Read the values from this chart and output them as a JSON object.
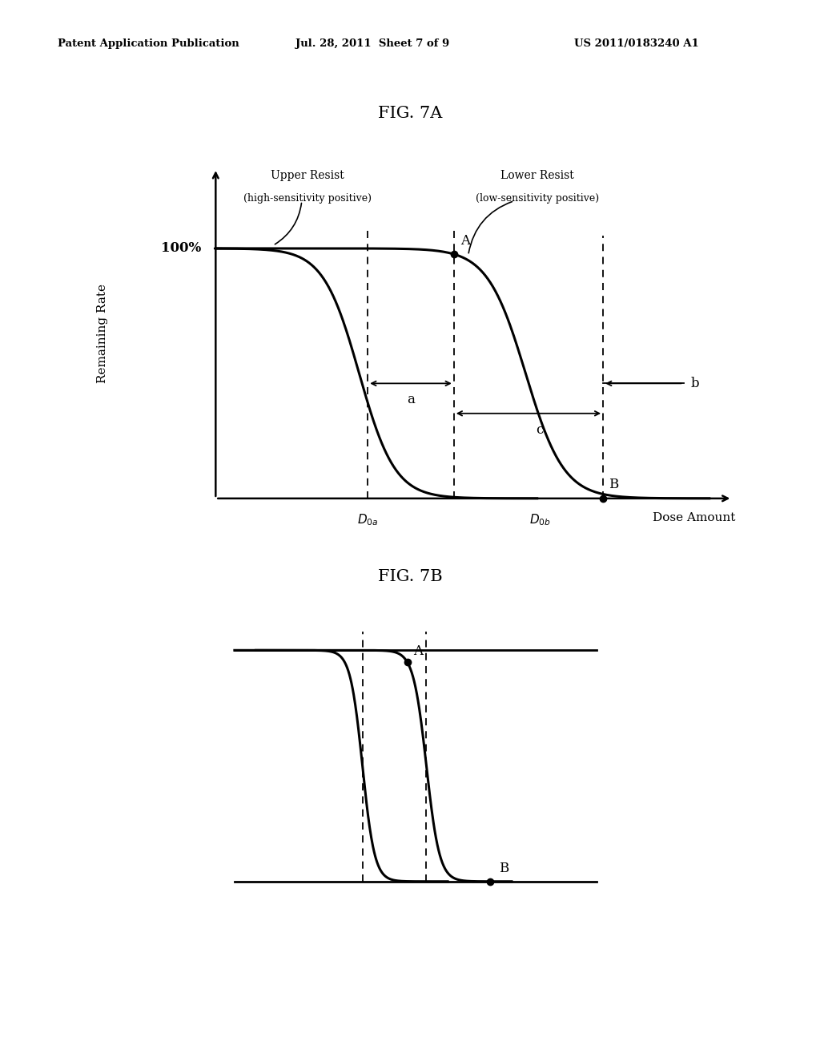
{
  "header_left": "Patent Application Publication",
  "header_mid": "Jul. 28, 2011  Sheet 7 of 9",
  "header_right": "US 2011/0183240 A1",
  "fig7a_title": "FIG. 7A",
  "fig7b_title": "FIG. 7B",
  "bg_color": "#ffffff",
  "line_color": "#000000",
  "ylabel_7a": "Remaining Rate",
  "xlabel_7a": "Dose Amount",
  "label_100pct": "100%",
  "label_upper_resist": "Upper Resist",
  "label_upper_resist2": "(high-sensitivity positive)",
  "label_lower_resist": "Lower Resist",
  "label_lower_resist2": "(low-sensitivity positive)",
  "label_a": "a",
  "label_b": "b",
  "label_c": "c",
  "label_A": "A",
  "label_B": "B"
}
